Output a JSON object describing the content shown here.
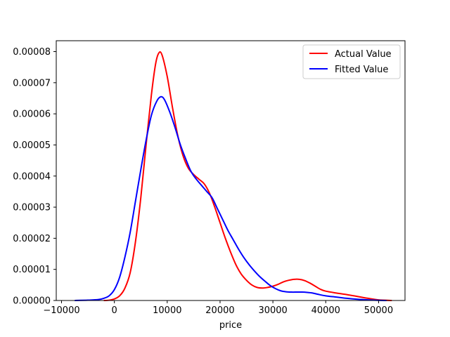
{
  "chart_data": {
    "type": "line",
    "title": "",
    "xlabel": "price",
    "ylabel": "",
    "xlim": [
      -11000,
      55000
    ],
    "ylim": [
      0,
      8.35e-05
    ],
    "grid": false,
    "legend_position": "top-right",
    "x_ticks": [
      {
        "value": -10000,
        "label": "−10000"
      },
      {
        "value": 0,
        "label": "0"
      },
      {
        "value": 10000,
        "label": "10000"
      },
      {
        "value": 20000,
        "label": "20000"
      },
      {
        "value": 30000,
        "label": "30000"
      },
      {
        "value": 40000,
        "label": "40000"
      },
      {
        "value": 50000,
        "label": "50000"
      }
    ],
    "y_ticks": [
      {
        "value": 0,
        "label": "0.00000"
      },
      {
        "value": 1e-05,
        "label": "0.00001"
      },
      {
        "value": 2e-05,
        "label": "0.00002"
      },
      {
        "value": 3e-05,
        "label": "0.00003"
      },
      {
        "value": 4e-05,
        "label": "0.00004"
      },
      {
        "value": 5e-05,
        "label": "0.00005"
      },
      {
        "value": 6e-05,
        "label": "0.00006"
      },
      {
        "value": 7e-05,
        "label": "0.00007"
      },
      {
        "value": 8e-05,
        "label": "0.00008"
      }
    ],
    "series": [
      {
        "name": "Actual Value",
        "color": "#ff0000",
        "points": [
          [
            -2000,
            0.0
          ],
          [
            -1000,
            1e-07
          ],
          [
            0,
            5e-07
          ],
          [
            1000,
            1.5e-06
          ],
          [
            2000,
            4e-06
          ],
          [
            3000,
            9e-06
          ],
          [
            4000,
            1.9e-05
          ],
          [
            5000,
            3.3e-05
          ],
          [
            6000,
            5e-05
          ],
          [
            7000,
            6.6e-05
          ],
          [
            7800,
            7.6e-05
          ],
          [
            8400,
            7.95e-05
          ],
          [
            9000,
            7.9e-05
          ],
          [
            10000,
            7.2e-05
          ],
          [
            11000,
            6.2e-05
          ],
          [
            12000,
            5.3e-05
          ],
          [
            13000,
            4.65e-05
          ],
          [
            14000,
            4.25e-05
          ],
          [
            15000,
            4.05e-05
          ],
          [
            16000,
            3.9e-05
          ],
          [
            17000,
            3.75e-05
          ],
          [
            18000,
            3.45e-05
          ],
          [
            19000,
            3e-05
          ],
          [
            20000,
            2.5e-05
          ],
          [
            21000,
            2e-05
          ],
          [
            22000,
            1.55e-05
          ],
          [
            23000,
            1.15e-05
          ],
          [
            24000,
            8.5e-06
          ],
          [
            25000,
            6.5e-06
          ],
          [
            26000,
            5e-06
          ],
          [
            27000,
            4.2e-06
          ],
          [
            28000,
            4e-06
          ],
          [
            29000,
            4.2e-06
          ],
          [
            30000,
            4.6e-06
          ],
          [
            31000,
            5.2e-06
          ],
          [
            32000,
            6e-06
          ],
          [
            33000,
            6.5e-06
          ],
          [
            34000,
            6.8e-06
          ],
          [
            35000,
            6.8e-06
          ],
          [
            36000,
            6.4e-06
          ],
          [
            37000,
            5.6e-06
          ],
          [
            38000,
            4.6e-06
          ],
          [
            39000,
            3.6e-06
          ],
          [
            40000,
            3e-06
          ],
          [
            42000,
            2.4e-06
          ],
          [
            44000,
            1.9e-06
          ],
          [
            46000,
            1.3e-06
          ],
          [
            48000,
            7e-07
          ],
          [
            50000,
            2e-07
          ],
          [
            52500,
            0.0
          ]
        ]
      },
      {
        "name": "Fitted Value",
        "color": "#0000ff",
        "points": [
          [
            -7500,
            0.0
          ],
          [
            -5000,
            1e-07
          ],
          [
            -3000,
            3e-07
          ],
          [
            -2000,
            7e-07
          ],
          [
            -1000,
            1.5e-06
          ],
          [
            0,
            3.5e-06
          ],
          [
            1000,
            7.5e-06
          ],
          [
            2000,
            1.4e-05
          ],
          [
            3000,
            2.2e-05
          ],
          [
            4000,
            3.2e-05
          ],
          [
            5000,
            4.2e-05
          ],
          [
            6000,
            5.15e-05
          ],
          [
            7000,
            5.95e-05
          ],
          [
            8000,
            6.4e-05
          ],
          [
            8800,
            6.55e-05
          ],
          [
            9500,
            6.45e-05
          ],
          [
            10500,
            6.05e-05
          ],
          [
            11500,
            5.55e-05
          ],
          [
            12500,
            5e-05
          ],
          [
            13500,
            4.55e-05
          ],
          [
            14500,
            4.15e-05
          ],
          [
            15500,
            3.9e-05
          ],
          [
            16500,
            3.7e-05
          ],
          [
            17500,
            3.5e-05
          ],
          [
            18500,
            3.3e-05
          ],
          [
            19500,
            2.95e-05
          ],
          [
            20500,
            2.6e-05
          ],
          [
            21500,
            2.25e-05
          ],
          [
            22500,
            1.95e-05
          ],
          [
            23500,
            1.65e-05
          ],
          [
            24500,
            1.38e-05
          ],
          [
            25500,
            1.15e-05
          ],
          [
            26500,
            9.5e-06
          ],
          [
            27500,
            7.7e-06
          ],
          [
            28500,
            6.2e-06
          ],
          [
            29500,
            4.8e-06
          ],
          [
            30500,
            3.8e-06
          ],
          [
            31500,
            3.1e-06
          ],
          [
            32500,
            2.8e-06
          ],
          [
            33500,
            2.7e-06
          ],
          [
            34500,
            2.7e-06
          ],
          [
            35500,
            2.7e-06
          ],
          [
            36500,
            2.6e-06
          ],
          [
            37500,
            2.4e-06
          ],
          [
            38500,
            2e-06
          ],
          [
            40000,
            1.5e-06
          ],
          [
            42000,
            1.1e-06
          ],
          [
            44000,
            7e-07
          ],
          [
            46000,
            4e-07
          ],
          [
            48000,
            2e-07
          ],
          [
            50000,
            5e-08
          ],
          [
            51500,
            0.0
          ]
        ]
      }
    ]
  }
}
